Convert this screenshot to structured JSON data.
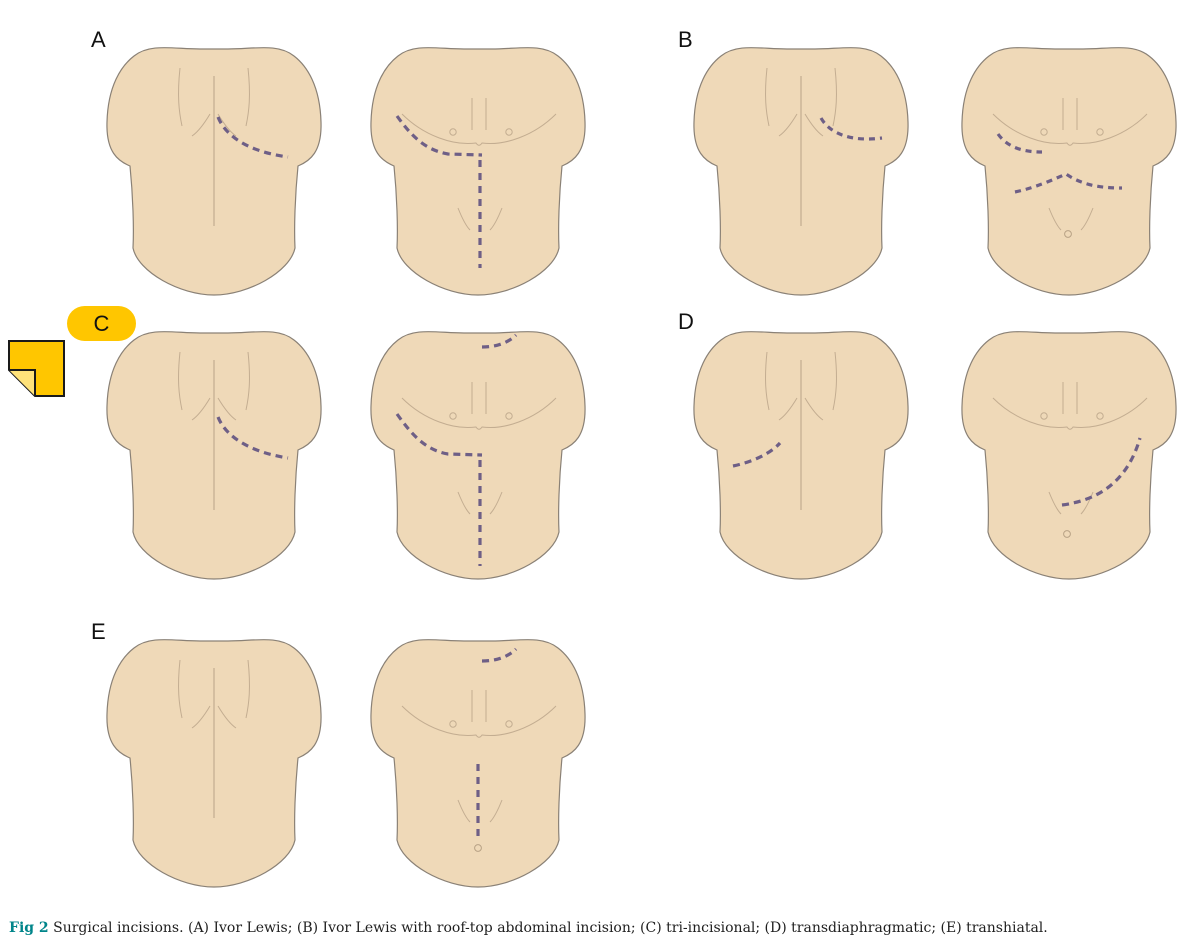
{
  "panels": [
    {
      "id": "A",
      "label": "A"
    },
    {
      "id": "B",
      "label": "B"
    },
    {
      "id": "C",
      "label": "C",
      "highlighted": true,
      "highlight_color": "#ffc600"
    },
    {
      "id": "D",
      "label": "D"
    },
    {
      "id": "E",
      "label": "E"
    }
  ],
  "colors": {
    "skin": "#efd9b8",
    "outline": "#8a8176",
    "anatomy_line": "#c3ad91",
    "incision": "#6e5f86",
    "note_icon": "#ffc600"
  },
  "icons": {
    "note": "sticky-note-icon"
  },
  "caption": {
    "fig_label": "Fig 2",
    "text": " Surgical incisions. (A) Ivor Lewis; (B) Ivor Lewis with roof-top abdominal incision; (C) tri-incisional; (D) transdiaphragmatic; (E) transhiatal."
  }
}
